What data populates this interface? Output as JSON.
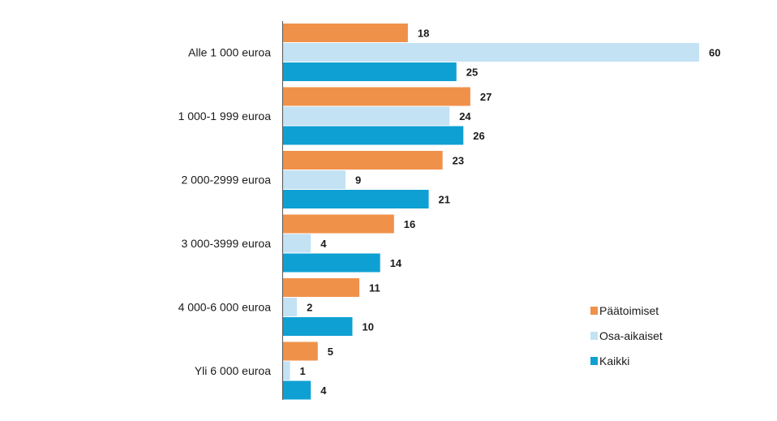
{
  "chart_data": {
    "type": "bar",
    "orientation": "horizontal",
    "categories": [
      "Alle 1 000 euroa",
      "1 000-1 999 euroa",
      "2 000-2999 euroa",
      "3 000-3999 euroa",
      "4 000-6 000 euroa",
      "Yli 6 000 euroa"
    ],
    "series": [
      {
        "name": "Päätoimiset",
        "color": "#F0914A",
        "values": [
          18,
          27,
          23,
          16,
          11,
          5
        ]
      },
      {
        "name": "Osa-aikaiset",
        "color": "#C3E2F4",
        "values": [
          60,
          24,
          9,
          4,
          2,
          1
        ]
      },
      {
        "name": "Kaikki",
        "color": "#0FA0D3",
        "values": [
          25,
          26,
          21,
          14,
          10,
          4
        ]
      }
    ],
    "xlim": [
      0,
      60
    ],
    "grid": false,
    "legend_position": "bottom-right",
    "data_labels": true
  }
}
